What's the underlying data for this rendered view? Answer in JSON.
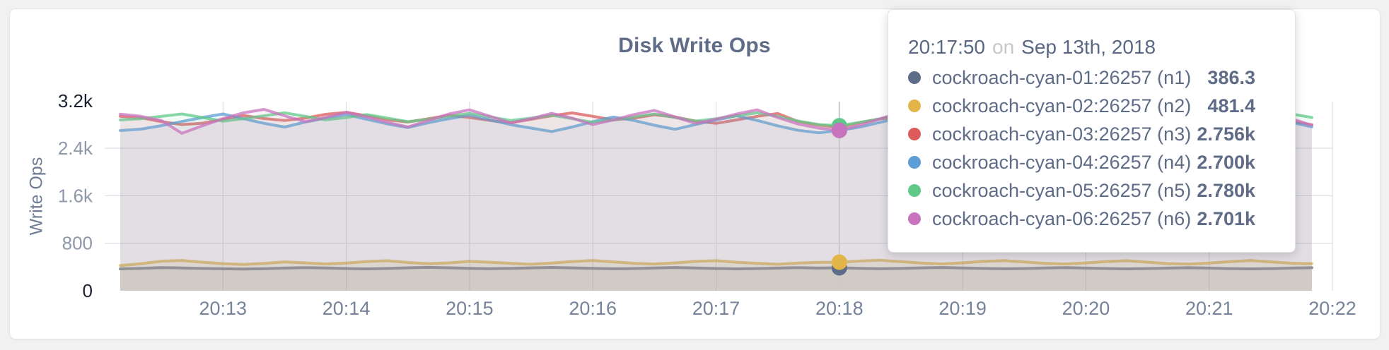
{
  "tooltip": {
    "time": "20:17:50",
    "connector": "on",
    "date": "Sep 13th, 2018",
    "hover_index": 35
  },
  "chart_data": {
    "type": "line",
    "title": "Disk Write Ops",
    "xlabel": "",
    "ylabel": "Write Ops",
    "ylim": [
      0,
      3200
    ],
    "grid": true,
    "legend_position": "tooltip",
    "y_ticks": [
      {
        "value": 0,
        "label": "0"
      },
      {
        "value": 800,
        "label": "800"
      },
      {
        "value": 1600,
        "label": "1.6k"
      },
      {
        "value": 2400,
        "label": "2.4k"
      },
      {
        "value": 3200,
        "label": "3.2k"
      }
    ],
    "x_ticks": [
      "20:13",
      "20:14",
      "20:15",
      "20:16",
      "20:17",
      "20:18",
      "20:19",
      "20:20",
      "20:21",
      "20:22"
    ],
    "x_start": "20:12:10",
    "x_step_seconds": 10,
    "first_tick_index": 5,
    "tick_index_step": 6,
    "series": [
      {
        "name": "cockroach-cyan-01:26257 (n1)",
        "color": "#5f6c87",
        "hover_display": "386.3",
        "values": [
          368,
          378,
          390,
          384,
          376,
          370,
          366,
          372,
          382,
          390,
          383,
          375,
          369,
          376,
          386,
          393,
          386,
          378,
          371,
          377,
          385,
          392,
          385,
          377,
          370,
          375,
          384,
          391,
          383,
          375,
          368,
          374,
          382,
          389,
          381,
          386.3,
          378,
          372,
          377,
          385,
          391,
          384,
          376,
          370,
          375,
          383,
          390,
          382,
          374,
          368,
          374,
          382,
          388,
          381,
          373,
          368,
          373,
          381,
          387
        ]
      },
      {
        "name": "cockroach-cyan-02:26257 (n2)",
        "color": "#e3b549",
        "hover_display": "481.4",
        "values": [
          425,
          455,
          498,
          510,
          482,
          456,
          442,
          460,
          486,
          470,
          452,
          466,
          492,
          506,
          476,
          456,
          470,
          494,
          480,
          462,
          446,
          466,
          492,
          510,
          486,
          462,
          450,
          470,
          494,
          506,
          480,
          462,
          446,
          466,
          478,
          481.4,
          500,
          514,
          490,
          466,
          452,
          470,
          494,
          508,
          484,
          462,
          450,
          468,
          492,
          506,
          482,
          458,
          448,
          466,
          490,
          510,
          486,
          464,
          456
        ]
      },
      {
        "name": "cockroach-cyan-03:26257 (n3)",
        "color": "#dd5a5a",
        "hover_display": "2.756k",
        "values": [
          2940,
          2915,
          2848,
          2800,
          2822,
          2888,
          2952,
          2900,
          2868,
          2908,
          2972,
          3005,
          2948,
          2880,
          2842,
          2898,
          2955,
          2918,
          2868,
          2830,
          2888,
          2948,
          2995,
          2938,
          2878,
          2908,
          2965,
          2928,
          2858,
          2820,
          2878,
          2938,
          2985,
          2850,
          2790,
          2756,
          2830,
          2895,
          2940,
          2885,
          2838,
          2800,
          2858,
          2918,
          2958,
          2908,
          2850,
          2802,
          2868,
          2928,
          2975,
          2918,
          2858,
          2810,
          2878,
          2938,
          2900,
          2848,
          2795
        ]
      },
      {
        "name": "cockroach-cyan-04:26257 (n4)",
        "color": "#5e9dd6",
        "hover_display": "2.700k",
        "values": [
          2698,
          2722,
          2780,
          2850,
          2918,
          2978,
          2898,
          2820,
          2758,
          2840,
          2908,
          2968,
          2888,
          2810,
          2748,
          2830,
          2898,
          2958,
          2878,
          2798,
          2740,
          2682,
          2758,
          2848,
          2928,
          2868,
          2788,
          2720,
          2798,
          2878,
          2948,
          2868,
          2778,
          2702,
          2660,
          2700,
          2758,
          2838,
          2918,
          2858,
          2778,
          2712,
          2788,
          2868,
          2938,
          2858,
          2768,
          2700,
          2778,
          2858,
          2928,
          2848,
          2758,
          2700,
          2778,
          2858,
          2918,
          2838,
          2760
        ]
      },
      {
        "name": "cockroach-cyan-05:26257 (n5)",
        "color": "#60c98a",
        "hover_display": "2.780k",
        "values": [
          2878,
          2898,
          2938,
          2978,
          2918,
          2858,
          2898,
          2948,
          2998,
          2938,
          2878,
          2918,
          2968,
          2908,
          2848,
          2888,
          2938,
          2988,
          2928,
          2868,
          2908,
          2958,
          2898,
          2838,
          2878,
          2928,
          2978,
          2918,
          2858,
          2898,
          2948,
          2998,
          2938,
          2858,
          2800,
          2780,
          2838,
          2898,
          2958,
          2898,
          2838,
          2878,
          2938,
          2988,
          2928,
          2868,
          2908,
          2958,
          2898,
          2838,
          2878,
          2928,
          2968,
          2908,
          2848,
          2888,
          2938,
          2978,
          2918
        ]
      },
      {
        "name": "cockroach-cyan-06:26257 (n6)",
        "color": "#c873be",
        "hover_display": "2.701k",
        "values": [
          2975,
          2938,
          2868,
          2652,
          2778,
          2898,
          2998,
          3055,
          2948,
          2848,
          2918,
          3008,
          2928,
          2838,
          2758,
          2868,
          2978,
          3048,
          2938,
          2828,
          2898,
          2988,
          2908,
          2798,
          2878,
          2968,
          3038,
          2928,
          2818,
          2888,
          2978,
          3048,
          2918,
          2808,
          2740,
          2701,
          2788,
          2898,
          3008,
          2938,
          2828,
          2758,
          2868,
          2958,
          3028,
          2918,
          2808,
          2748,
          2858,
          2948,
          3018,
          2908,
          2798,
          2738,
          2848,
          2938,
          3008,
          2898,
          2788
        ]
      }
    ]
  }
}
